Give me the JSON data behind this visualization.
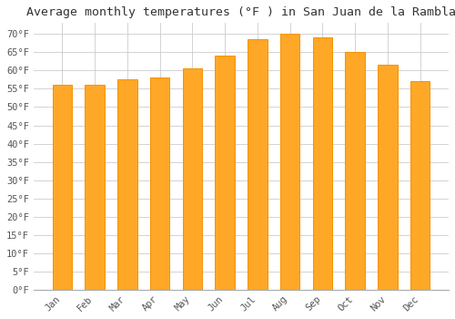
{
  "title": "Average monthly temperatures (°F ) in San Juan de la Rambla",
  "months": [
    "Jan",
    "Feb",
    "Mar",
    "Apr",
    "May",
    "Jun",
    "Jul",
    "Aug",
    "Sep",
    "Oct",
    "Nov",
    "Dec"
  ],
  "values": [
    56,
    56,
    57.5,
    58,
    60.5,
    64,
    68.5,
    70,
    69,
    65,
    61.5,
    57
  ],
  "bar_color": "#FFA726",
  "bar_edge_color": "#F59300",
  "ylim": [
    0,
    73
  ],
  "yticks": [
    0,
    5,
    10,
    15,
    20,
    25,
    30,
    35,
    40,
    45,
    50,
    55,
    60,
    65,
    70
  ],
  "ytick_labels": [
    "0°F",
    "5°F",
    "10°F",
    "15°F",
    "20°F",
    "25°F",
    "30°F",
    "35°F",
    "40°F",
    "45°F",
    "50°F",
    "55°F",
    "60°F",
    "65°F",
    "70°F"
  ],
  "background_color": "#FFFFFF",
  "plot_bg_color": "#FFFFFF",
  "grid_color": "#CCCCCC",
  "font_family": "monospace",
  "title_fontsize": 9.5,
  "tick_fontsize": 7.5,
  "tick_color": "#555555",
  "bar_width": 0.6
}
